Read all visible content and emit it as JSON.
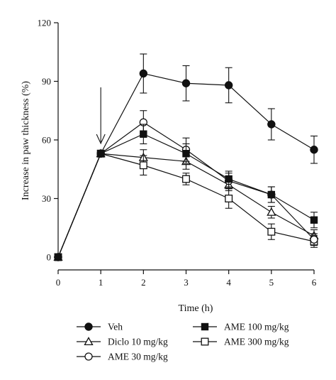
{
  "chart_data": {
    "type": "line",
    "xlabel": "Time (h)",
    "ylabel": "Increase in paw thickness (%)",
    "xlim": [
      0,
      6
    ],
    "ylim": [
      0,
      120
    ],
    "xticks": [
      "0",
      "1",
      "2",
      "3",
      "4",
      "5",
      "6"
    ],
    "yticks": [
      "0",
      "30",
      "60",
      "90",
      "120"
    ],
    "grid": false,
    "legend_position": "bottom",
    "annotation": {
      "type": "arrow",
      "x": 1,
      "description": "downward arrow at 1 h"
    },
    "series": [
      {
        "name": "Veh",
        "marker": "filled-circle",
        "x": [
          0,
          1,
          2,
          3,
          4,
          5,
          6
        ],
        "y": [
          0,
          53,
          94,
          89,
          88,
          68,
          55
        ],
        "err": [
          0,
          0,
          10,
          9,
          9,
          8,
          7
        ]
      },
      {
        "name": "Diclo 10 mg/kg",
        "marker": "open-triangle",
        "x": [
          0,
          1,
          2,
          3,
          4,
          5,
          6
        ],
        "y": [
          0,
          53,
          51,
          49,
          37,
          23,
          11
        ],
        "err": [
          0,
          0,
          4,
          4,
          3,
          3,
          3
        ]
      },
      {
        "name": "AME 30 mg/kg",
        "marker": "open-circle",
        "x": [
          0,
          1,
          2,
          3,
          4,
          5,
          6
        ],
        "y": [
          0,
          53,
          69,
          55,
          39,
          32,
          9
        ],
        "err": [
          0,
          0,
          6,
          6,
          4,
          4,
          3
        ]
      },
      {
        "name": "AME 100 mg/kg",
        "marker": "filled-square",
        "x": [
          0,
          1,
          2,
          3,
          4,
          5,
          6
        ],
        "y": [
          0,
          53,
          63,
          53,
          40,
          32,
          19
        ],
        "err": [
          0,
          0,
          5,
          5,
          4,
          4,
          4
        ]
      },
      {
        "name": "AME 300 mg/kg",
        "marker": "open-square",
        "x": [
          0,
          1,
          2,
          3,
          4,
          5,
          6
        ],
        "y": [
          0,
          53,
          47,
          40,
          30,
          13,
          8
        ],
        "err": [
          0,
          0,
          5,
          3,
          5,
          4,
          3
        ]
      }
    ]
  }
}
